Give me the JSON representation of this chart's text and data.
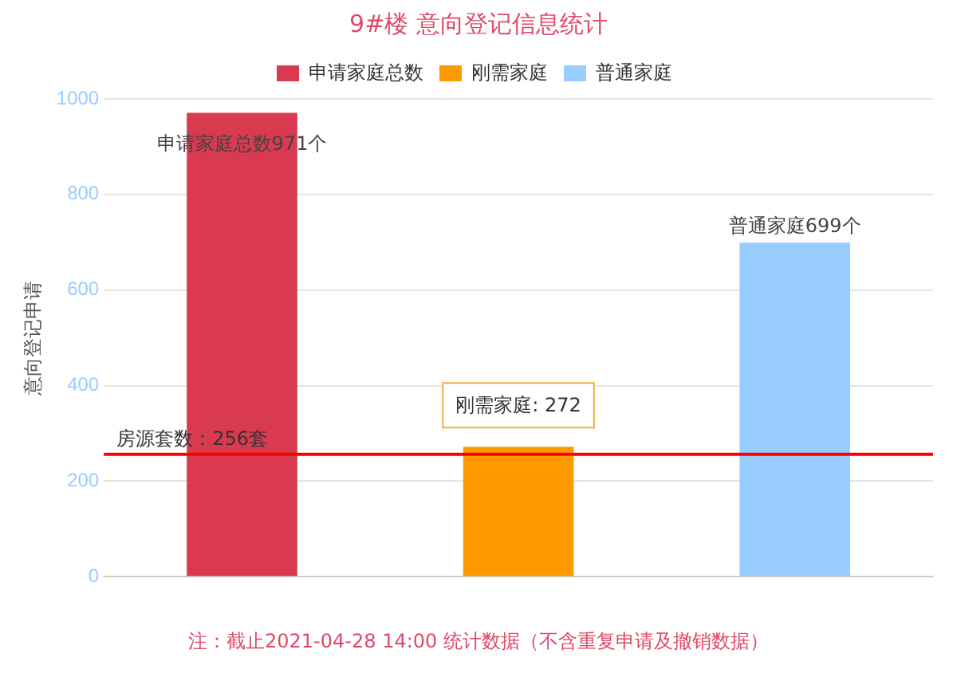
{
  "chart_data": {
    "type": "bar",
    "title": "9#楼 意向登记信息统计",
    "ylabel": "意向登记申请",
    "categories": [
      null,
      null,
      null
    ],
    "series": [
      {
        "name": "申请家庭总数",
        "color": "#d93a50",
        "values": [
          971,
          null,
          null
        ],
        "value_labels": [
          "申请家庭总数971个",
          null,
          null
        ]
      },
      {
        "name": "刚需家庭",
        "color": "#ff9900",
        "values": [
          null,
          272,
          null
        ],
        "value_labels": [
          null,
          "刚需家庭: 272",
          null
        ]
      },
      {
        "name": "普通家庭",
        "color": "#99ccff",
        "values": [
          null,
          null,
          699
        ],
        "value_labels": [
          null,
          null,
          "普通家庭699个"
        ]
      }
    ],
    "ylim": [
      0,
      1000
    ],
    "yticks": [
      0,
      200,
      400,
      600,
      800,
      1000
    ],
    "grid": "y",
    "legend": "top",
    "ref_lines": [
      {
        "axis": "y",
        "value": 256,
        "label": "房源套数：256套",
        "color": "#ff0000"
      }
    ],
    "annotations": [
      "注：截止2021-04-28 14:00 统计数据（不含重复申请及撤销数据）"
    ]
  }
}
